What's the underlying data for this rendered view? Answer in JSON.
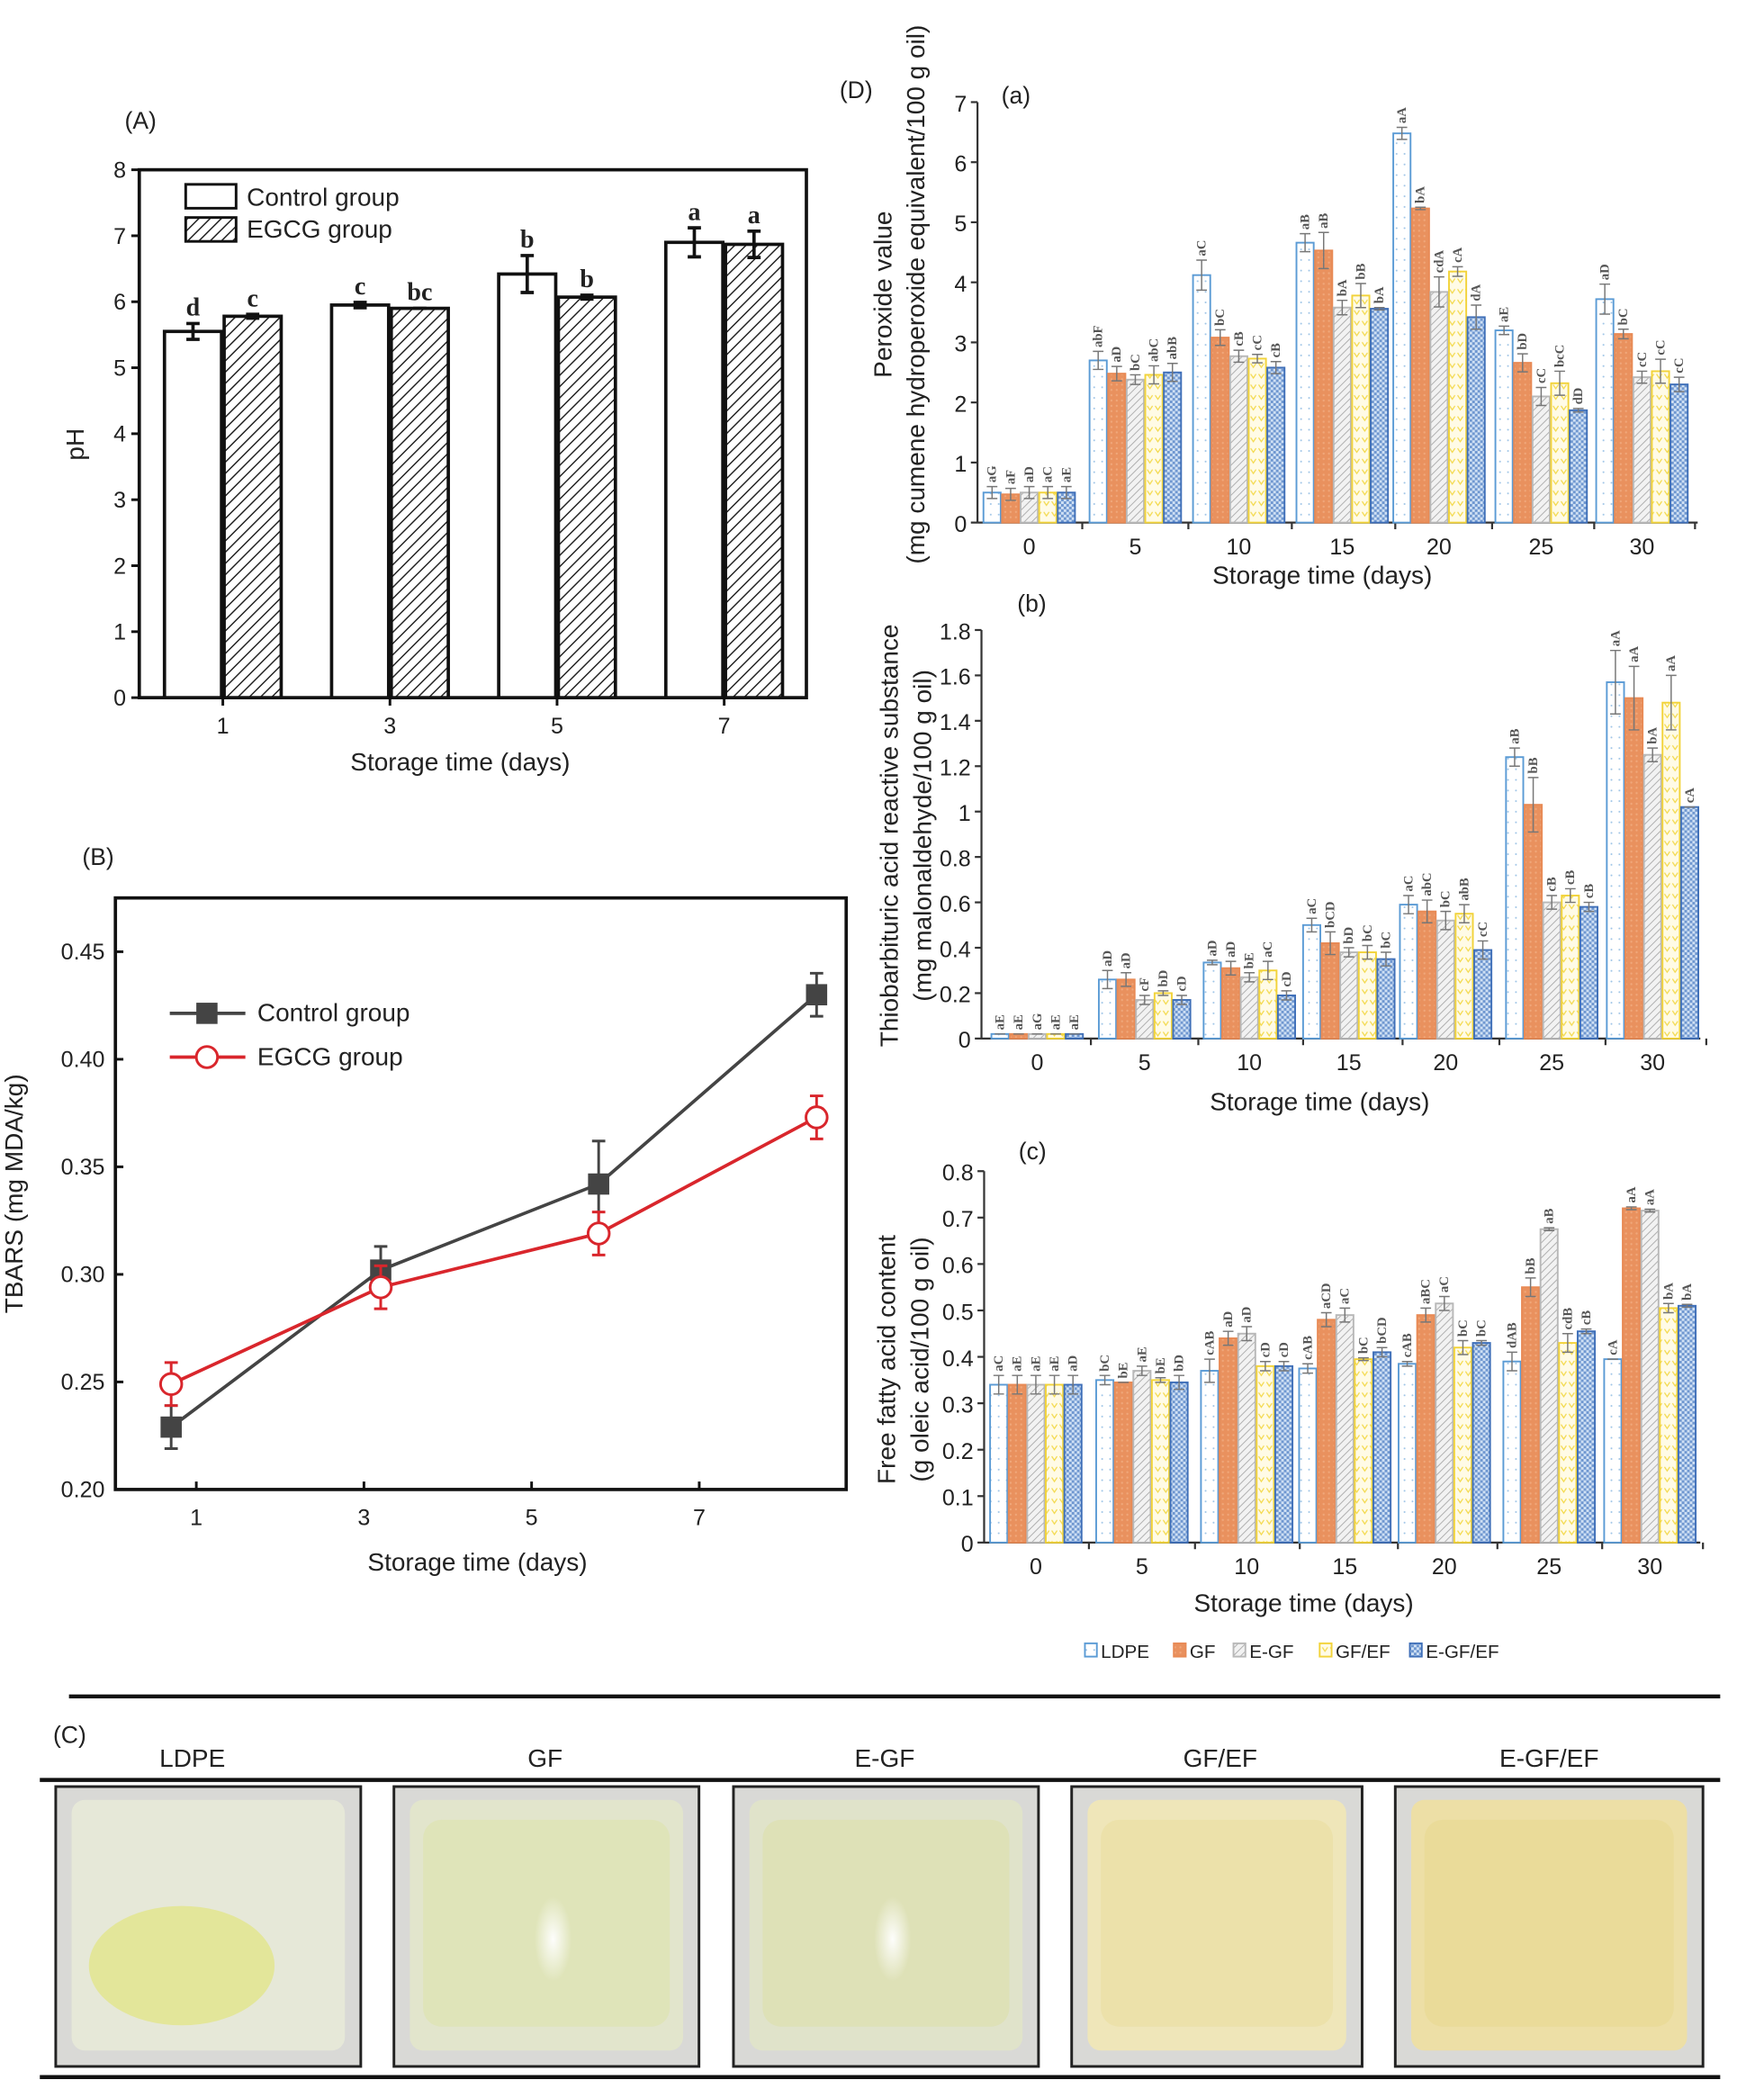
{
  "panel_labels": {
    "A": "(A)",
    "B": "(B)",
    "C": "(C)",
    "D": "(D)"
  },
  "chart_data": [
    {
      "id": "A",
      "type": "bar",
      "xlabel": "Storage time (days)",
      "ylabel": "pH",
      "ylim": [
        0,
        8
      ],
      "yticks": [
        0,
        1,
        2,
        3,
        4,
        5,
        6,
        7,
        8
      ],
      "categories": [
        "1",
        "3",
        "5",
        "7"
      ],
      "legend_position": "top-left",
      "series": [
        {
          "name": "Control group",
          "values": [
            5.55,
            5.95,
            6.42,
            6.9
          ],
          "err": [
            0.12,
            0.04,
            0.28,
            0.22
          ],
          "letters": [
            "d",
            "c",
            "b",
            "a"
          ],
          "fill": "white"
        },
        {
          "name": "EGCG group",
          "values": [
            5.78,
            5.9,
            6.07,
            6.87
          ],
          "err": [
            0.03,
            0.0,
            0.03,
            0.2
          ],
          "letters": [
            "c",
            "bc",
            "b",
            "a"
          ],
          "fill": "hatched"
        }
      ]
    },
    {
      "id": "B",
      "type": "line",
      "xlabel": "Storage time (days)",
      "ylabel": "TBARS (mg MDA/kg)",
      "ylim": [
        0.2,
        0.475
      ],
      "yticks": [
        "0.20",
        "0.25",
        "0.30",
        "0.35",
        "0.40",
        "0.45"
      ],
      "xticks": [
        "1",
        "3",
        "5",
        "7"
      ],
      "legend_position": "top-left",
      "series": [
        {
          "name": "Control group",
          "color": "#444444",
          "marker": "filled-square",
          "x": [
            0.7,
            3.2,
            5.8,
            8.4
          ],
          "y": [
            0.229,
            0.302,
            0.342,
            0.43
          ],
          "err": [
            0.01,
            0.011,
            0.02,
            0.01
          ]
        },
        {
          "name": "EGCG group",
          "color": "#d9262c",
          "marker": "open-circle",
          "x": [
            0.7,
            3.2,
            5.8,
            8.4
          ],
          "y": [
            0.249,
            0.294,
            0.319,
            0.373
          ],
          "err": [
            0.01,
            0.01,
            0.01,
            0.01
          ]
        }
      ]
    },
    {
      "id": "D-a",
      "sublabel": "(a)",
      "type": "bar",
      "xlabel": "Storage time (days)",
      "ylabel": [
        "Peroxide value",
        "(mg cumene hydroperoxide equivalent/100 g oil)"
      ],
      "ylim": [
        0,
        7
      ],
      "yticks": [
        "0",
        "1",
        "2",
        "3",
        "4",
        "5",
        "6",
        "7"
      ],
      "categories": [
        "0",
        "5",
        "10",
        "15",
        "20",
        "25",
        "30"
      ],
      "series": [
        {
          "name": "LDPE",
          "values": [
            0.5,
            2.7,
            4.12,
            4.66,
            6.48,
            3.2,
            3.72
          ],
          "err": [
            0.1,
            0.15,
            0.25,
            0.15,
            0.1,
            0.07,
            0.25
          ],
          "letters": [
            "aG",
            "abF",
            "aC",
            "aB",
            "aA",
            "aE",
            "aD"
          ]
        },
        {
          "name": "GF",
          "values": [
            0.47,
            2.48,
            3.08,
            4.53,
            5.23,
            2.66,
            3.14
          ],
          "err": [
            0.1,
            0.12,
            0.13,
            0.3,
            0.02,
            0.15,
            0.08
          ],
          "letters": [
            "aF",
            "aD",
            "bC",
            "aB",
            "bA",
            "bD",
            "bC"
          ]
        },
        {
          "name": "E-GF",
          "values": [
            0.5,
            2.38,
            2.77,
            3.58,
            3.84,
            2.1,
            2.42
          ],
          "err": [
            0.1,
            0.08,
            0.1,
            0.12,
            0.25,
            0.15,
            0.1
          ],
          "letters": [
            "aD",
            "bC",
            "cB",
            "bA",
            "cdA",
            "cC",
            "cC"
          ]
        },
        {
          "name": "GF/EF",
          "values": [
            0.5,
            2.46,
            2.73,
            3.78,
            4.18,
            2.32,
            2.52
          ],
          "err": [
            0.1,
            0.15,
            0.07,
            0.2,
            0.08,
            0.2,
            0.2
          ],
          "letters": [
            "aC",
            "abC",
            "cC",
            "bB",
            "cA",
            "bcC",
            "cC"
          ]
        },
        {
          "name": "E-GF/EF",
          "values": [
            0.5,
            2.5,
            2.58,
            3.56,
            3.42,
            1.87,
            2.3
          ],
          "err": [
            0.1,
            0.15,
            0.1,
            0.02,
            0.2,
            0.03,
            0.12
          ],
          "letters": [
            "aE",
            "abB",
            "cB",
            "bA",
            "dA",
            "dD",
            "cC"
          ]
        }
      ]
    },
    {
      "id": "D-b",
      "sublabel": "(b)",
      "type": "bar",
      "xlabel": "Storage time (days)",
      "ylabel": [
        "Thiobarbituric acid reactive substance",
        "(mg malonaldehyde/100 g oil)"
      ],
      "ylim": [
        0,
        1.8
      ],
      "yticks": [
        "0",
        "0.2",
        "0.4",
        "0.6",
        "0.8",
        "1",
        "1.2",
        "1.4",
        "1.6",
        "1.8"
      ],
      "categories": [
        "0",
        "5",
        "10",
        "15",
        "20",
        "25",
        "30"
      ],
      "series": [
        {
          "name": "LDPE",
          "values": [
            0.02,
            0.26,
            0.335,
            0.5,
            0.59,
            1.24,
            1.57
          ],
          "err": [
            0,
            0.04,
            0.01,
            0.03,
            0.04,
            0.04,
            0.14
          ],
          "letters": [
            "aE",
            "aD",
            "aD",
            "aC",
            "aC",
            "aB",
            "aA"
          ]
        },
        {
          "name": "GF",
          "values": [
            0.02,
            0.26,
            0.31,
            0.42,
            0.56,
            1.03,
            1.5
          ],
          "err": [
            0,
            0.03,
            0.03,
            0.05,
            0.05,
            0.12,
            0.14
          ],
          "letters": [
            "aE",
            "aD",
            "aD",
            "bCD",
            "abC",
            "bB",
            "aA"
          ]
        },
        {
          "name": "E-GF",
          "values": [
            0.02,
            0.17,
            0.27,
            0.38,
            0.52,
            0.6,
            1.25
          ],
          "err": [
            0,
            0.02,
            0.02,
            0.02,
            0.04,
            0.03,
            0.03
          ],
          "letters": [
            "aG",
            "cF",
            "bE",
            "bD",
            "bC",
            "cB",
            "bA"
          ]
        },
        {
          "name": "GF/EF",
          "values": [
            0.02,
            0.2,
            0.3,
            0.38,
            0.55,
            0.63,
            1.48
          ],
          "err": [
            0,
            0.01,
            0.04,
            0.03,
            0.04,
            0.03,
            0.12
          ],
          "letters": [
            "aE",
            "bD",
            "aC",
            "bC",
            "abB",
            "cB",
            "aA"
          ]
        },
        {
          "name": "E-GF/EF",
          "values": [
            0.02,
            0.17,
            0.19,
            0.35,
            0.39,
            0.58,
            1.02
          ],
          "err": [
            0,
            0.02,
            0.02,
            0.03,
            0.04,
            0.02,
            0
          ],
          "letters": [
            "aE",
            "cD",
            "cD",
            "bC",
            "cC",
            "cB",
            "cA"
          ]
        }
      ]
    },
    {
      "id": "D-c",
      "sublabel": "(c)",
      "type": "bar",
      "xlabel": "Storage time (days)",
      "ylabel": [
        "Free fatty acid content",
        "(g oleic acid/100 g oil)"
      ],
      "ylim": [
        0,
        0.8
      ],
      "yticks": [
        "0",
        "0.1",
        "0.2",
        "0.3",
        "0.4",
        "0.5",
        "0.6",
        "0.7",
        "0.8"
      ],
      "categories": [
        "0",
        "5",
        "10",
        "15",
        "20",
        "25",
        "30"
      ],
      "legend_position": "bottom",
      "series": [
        {
          "name": "LDPE",
          "values": [
            0.34,
            0.35,
            0.37,
            0.375,
            0.385,
            0.39,
            0.395
          ],
          "err": [
            0.02,
            0.01,
            0.025,
            0.01,
            0.005,
            0.02,
            0
          ],
          "letters": [
            "aC",
            "bC",
            "cAB",
            "cAB",
            "cAB",
            "dAB",
            "cA"
          ]
        },
        {
          "name": "GF",
          "values": [
            0.34,
            0.345,
            0.44,
            0.48,
            0.49,
            0.55,
            0.72
          ],
          "err": [
            0.02,
            0,
            0.015,
            0.015,
            0.015,
            0.02,
            0.003
          ],
          "letters": [
            "aE",
            "bE",
            "aD",
            "aCD",
            "aBC",
            "bB",
            "aA"
          ]
        },
        {
          "name": "E-GF",
          "values": [
            0.34,
            0.37,
            0.45,
            0.49,
            0.515,
            0.675,
            0.715
          ],
          "err": [
            0.02,
            0.01,
            0.015,
            0.015,
            0.015,
            0.003,
            0.003
          ],
          "letters": [
            "aE",
            "aE",
            "aD",
            "aC",
            "aC",
            "aB",
            "aA"
          ]
        },
        {
          "name": "GF/EF",
          "values": [
            0.34,
            0.35,
            0.38,
            0.395,
            0.42,
            0.43,
            0.505
          ],
          "err": [
            0.02,
            0.005,
            0.01,
            0.003,
            0.015,
            0.02,
            0.01
          ],
          "letters": [
            "aE",
            "bE",
            "cD",
            "bC",
            "bC",
            "cdB",
            "bA"
          ]
        },
        {
          "name": "E-GF/EF",
          "values": [
            0.34,
            0.345,
            0.38,
            0.41,
            0.43,
            0.455,
            0.51
          ],
          "err": [
            0.02,
            0.015,
            0.01,
            0.01,
            0.005,
            0.005,
            0.003
          ],
          "letters": [
            "aD",
            "bD",
            "cD",
            "bCD",
            "bC",
            "cB",
            "bA"
          ]
        }
      ]
    }
  ],
  "series_colors": {
    "LDPE": "#5b9bd5",
    "GF": "#e88a55",
    "E-GF": "#b8b8b8",
    "GF/EF": "#f2d33a",
    "E-GF/EF": "#3f6fb8"
  },
  "panel_C": {
    "samples": [
      {
        "name": "LDPE",
        "tint": "#e6e8d8",
        "oil": "#e3e69a"
      },
      {
        "name": "GF",
        "tint": "#e2e5cc",
        "oil": "#dfe3b4"
      },
      {
        "name": "E-GF",
        "tint": "#e0e3ca",
        "oil": "#dde0b2"
      },
      {
        "name": "GF/EF",
        "tint": "#efe6b9",
        "oil": "#ebe0a6"
      },
      {
        "name": "E-GF/EF",
        "tint": "#eddfa6",
        "oil": "#e8d996"
      }
    ]
  }
}
